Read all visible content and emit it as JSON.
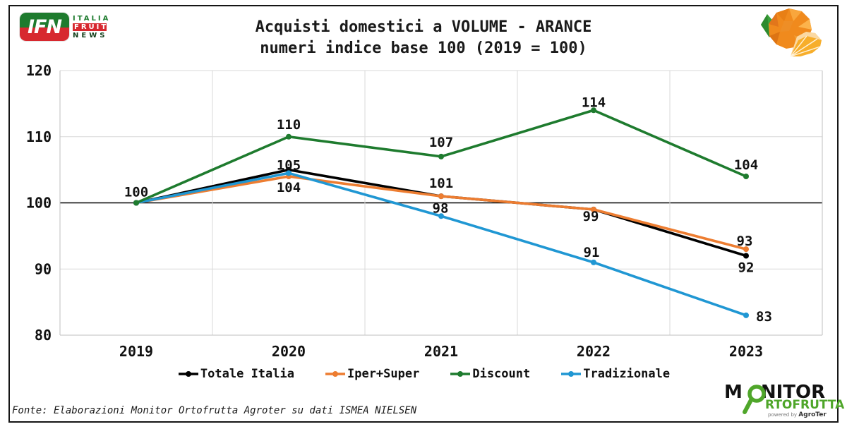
{
  "header": {
    "ifn_logo": {
      "acronym": "IFN",
      "italia": "ITALIA",
      "fruit": "FRUIT",
      "news": "NEWS"
    },
    "title_line1": "Acquisti domestici a VOLUME - ARANCE",
    "title_line2": "numeri indice base 100 (2019 = 100)"
  },
  "chart_data": {
    "type": "line",
    "title": "Acquisti domestici a VOLUME - ARANCE",
    "subtitle": "numeri indice base 100 (2019 = 100)",
    "categories": [
      "2019",
      "2020",
      "2021",
      "2022",
      "2023"
    ],
    "series": [
      {
        "name": "Totale Italia",
        "color": "#000000",
        "values": [
          100,
          105,
          101,
          99,
          92
        ],
        "labels": [
          "100",
          "105",
          "101",
          "99",
          "92"
        ]
      },
      {
        "name": "Iper+Super",
        "color": "#ED7D31",
        "values": [
          100,
          104,
          101,
          99,
          93
        ],
        "labels": [
          null,
          "104",
          null,
          null,
          "93"
        ]
      },
      {
        "name": "Discount",
        "color": "#1E7B2E",
        "values": [
          100,
          110,
          107,
          114,
          104
        ],
        "labels": [
          null,
          "110",
          "107",
          "114",
          "104"
        ]
      },
      {
        "name": "Tradizionale",
        "color": "#2097D3",
        "values": [
          100,
          104.5,
          98,
          91,
          83
        ],
        "labels": [
          null,
          null,
          "98",
          "91",
          "83"
        ]
      }
    ],
    "ylim": [
      80,
      120
    ],
    "yticks": [
      80,
      90,
      100,
      110,
      120
    ],
    "baseline": 100,
    "grid": true,
    "legend_position": "bottom"
  },
  "footer": {
    "source": "Fonte: Elaborazioni Monitor Ortofrutta Agroter su dati ISMEA NIELSEN"
  },
  "monitor_logo": {
    "m": "M",
    "nitor": "NITOR",
    "line2": "RTOFRUTTA",
    "powered_by": "powered by",
    "agroter": "AgroTer"
  }
}
